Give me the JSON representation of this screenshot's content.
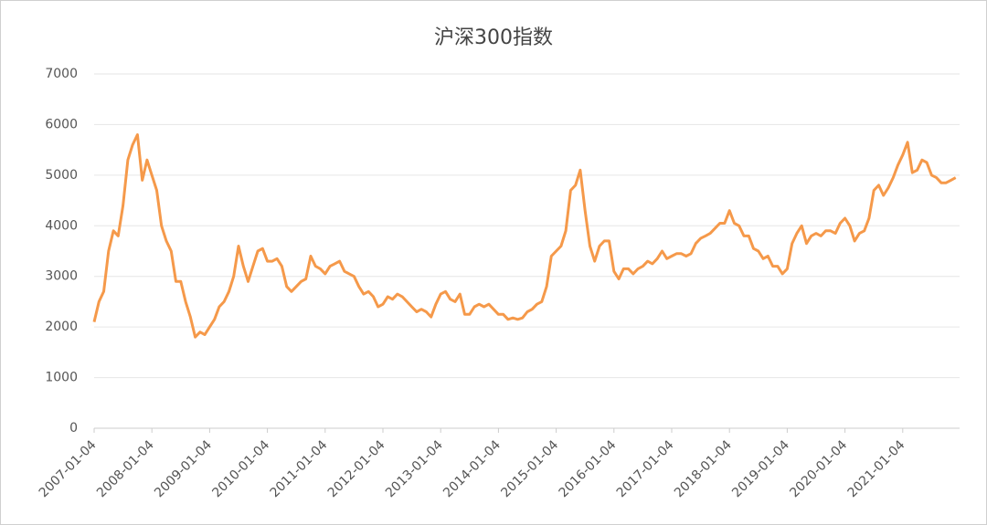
{
  "chart_data": {
    "type": "line",
    "title": "沪深300指数",
    "categories": [
      "2007-01-04",
      null,
      null,
      null,
      null,
      null,
      null,
      null,
      null,
      null,
      null,
      null,
      "2008-01-04",
      null,
      null,
      null,
      null,
      null,
      null,
      null,
      null,
      null,
      null,
      null,
      "2009-01-04",
      null,
      null,
      null,
      null,
      null,
      null,
      null,
      null,
      null,
      null,
      null,
      "2010-01-04",
      null,
      null,
      null,
      null,
      null,
      null,
      null,
      null,
      null,
      null,
      null,
      "2011-01-04",
      null,
      null,
      null,
      null,
      null,
      null,
      null,
      null,
      null,
      null,
      null,
      "2012-01-04",
      null,
      null,
      null,
      null,
      null,
      null,
      null,
      null,
      null,
      null,
      null,
      "2013-01-04",
      null,
      null,
      null,
      null,
      null,
      null,
      null,
      null,
      null,
      null,
      null,
      "2014-01-04",
      null,
      null,
      null,
      null,
      null,
      null,
      null,
      null,
      null,
      null,
      null,
      "2015-01-04",
      null,
      null,
      null,
      null,
      null,
      null,
      null,
      null,
      null,
      null,
      null,
      "2016-01-04",
      null,
      null,
      null,
      null,
      null,
      null,
      null,
      null,
      null,
      null,
      null,
      "2017-01-04",
      null,
      null,
      null,
      null,
      null,
      null,
      null,
      null,
      null,
      null,
      null,
      "2018-01-04",
      null,
      null,
      null,
      null,
      null,
      null,
      null,
      null,
      null,
      null,
      null,
      "2019-01-04",
      null,
      null,
      null,
      null,
      null,
      null,
      null,
      null,
      null,
      null,
      null,
      "2020-01-04",
      null,
      null,
      null,
      null,
      null,
      null,
      null,
      null,
      null,
      null,
      null,
      "2021-01-04",
      null,
      null,
      null,
      null,
      null,
      null,
      null,
      null,
      null,
      null,
      null
    ],
    "series": [
      {
        "name": "沪深300",
        "color": "#f5994a",
        "values": [
          2100,
          2500,
          2700,
          3500,
          3900,
          3800,
          4400,
          5300,
          5600,
          5800,
          4900,
          5300,
          5000,
          4700,
          4000,
          3700,
          3500,
          2900,
          2900,
          2500,
          2200,
          1800,
          1900,
          1850,
          2000,
          2150,
          2400,
          2500,
          2700,
          3000,
          3600,
          3200,
          2900,
          3200,
          3500,
          3550,
          3300,
          3300,
          3350,
          3200,
          2800,
          2700,
          2800,
          2900,
          2950,
          3400,
          3200,
          3150,
          3050,
          3200,
          3250,
          3300,
          3100,
          3050,
          3000,
          2800,
          2650,
          2700,
          2600,
          2400,
          2450,
          2600,
          2550,
          2650,
          2600,
          2500,
          2400,
          2300,
          2350,
          2300,
          2200,
          2450,
          2650,
          2700,
          2550,
          2500,
          2650,
          2250,
          2250,
          2400,
          2450,
          2400,
          2450,
          2350,
          2250,
          2250,
          2150,
          2180,
          2150,
          2180,
          2300,
          2350,
          2450,
          2500,
          2800,
          3400,
          3500,
          3600,
          3900,
          4700,
          4800,
          5100,
          4300,
          3600,
          3300,
          3600,
          3700,
          3700,
          3100,
          2950,
          3150,
          3150,
          3050,
          3150,
          3200,
          3300,
          3250,
          3350,
          3500,
          3350,
          3400,
          3450,
          3450,
          3400,
          3450,
          3650,
          3750,
          3800,
          3850,
          3950,
          4050,
          4050,
          4300,
          4050,
          4000,
          3800,
          3800,
          3550,
          3500,
          3350,
          3400,
          3200,
          3200,
          3050,
          3150,
          3650,
          3850,
          4000,
          3650,
          3800,
          3850,
          3800,
          3900,
          3900,
          3850,
          4050,
          4150,
          4000,
          3700,
          3850,
          3900,
          4150,
          4700,
          4800,
          4600,
          4750,
          4950,
          5200,
          5400,
          5650,
          5050,
          5100,
          5300,
          5250,
          5000,
          4950,
          4850,
          4850,
          4900,
          4950
        ]
      }
    ],
    "ylim": [
      0,
      7000
    ],
    "yticks": [
      0,
      1000,
      2000,
      3000,
      4000,
      5000,
      6000,
      7000
    ],
    "grid": true
  }
}
